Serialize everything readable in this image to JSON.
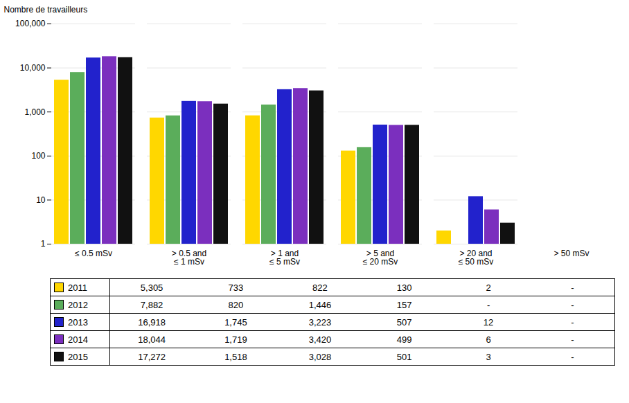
{
  "chart_data": {
    "type": "bar",
    "categories": [
      "≤ 0.5 mSv",
      "> 0.5 and\n≤ 1 mSv",
      "> 1 and\n≤ 5 mSv",
      "> 5 and\n≤ 20 mSv",
      "> 20 and\n≤ 50 mSv",
      "> 50 mSv"
    ],
    "series": [
      {
        "name": "2011",
        "color": "#FFD700",
        "values": [
          5305,
          733,
          822,
          130,
          2,
          null
        ],
        "value_labels": [
          "5,305",
          "733",
          "822",
          "130",
          "2",
          "-"
        ]
      },
      {
        "name": "2012",
        "color": "#5BAD5B",
        "values": [
          7882,
          820,
          1446,
          157,
          null,
          null
        ],
        "value_labels": [
          "7,882",
          "820",
          "1,446",
          "157",
          "-",
          "-"
        ]
      },
      {
        "name": "2013",
        "color": "#2222CC",
        "values": [
          16918,
          1745,
          3223,
          507,
          12,
          null
        ],
        "value_labels": [
          "16,918",
          "1,745",
          "3,223",
          "507",
          "12",
          "-"
        ]
      },
      {
        "name": "2014",
        "color": "#7B2FBE",
        "values": [
          18044,
          1719,
          3420,
          499,
          6,
          null
        ],
        "value_labels": [
          "18,044",
          "1,719",
          "3,420",
          "499",
          "6",
          "-"
        ]
      },
      {
        "name": "2015",
        "color": "#111111",
        "values": [
          17272,
          1518,
          3028,
          501,
          3,
          null
        ],
        "value_labels": [
          "17,272",
          "1,518",
          "3,028",
          "501",
          "3",
          "-"
        ]
      }
    ],
    "ylabel": "Nombre de travailleurs",
    "ylim": [
      1,
      100000
    ],
    "yticks": [
      1,
      10,
      100,
      {
        "value": 1000,
        "label": "1,000"
      },
      {
        "value": 10000,
        "label": "10,000"
      },
      {
        "value": 100000,
        "label": "100,000"
      }
    ],
    "log": "y",
    "grid": true,
    "legend": "bottom",
    "data_labels": true
  }
}
